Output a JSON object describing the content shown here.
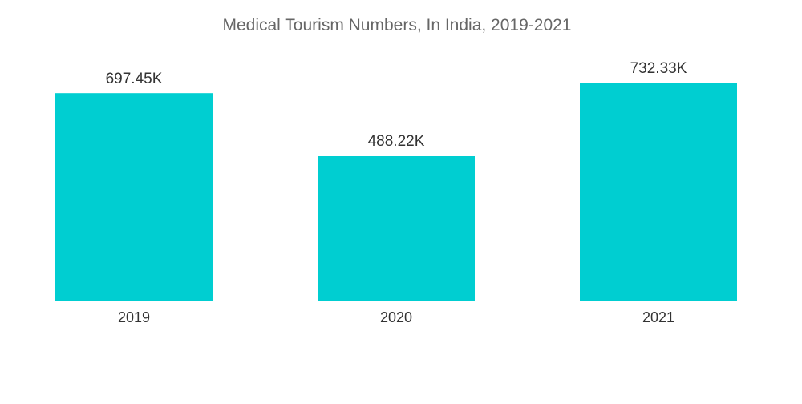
{
  "chart_data": {
    "type": "bar",
    "title": "Medical Tourism Numbers, In India, 2019-2021",
    "categories": [
      "2019",
      "2020",
      "2021"
    ],
    "values": [
      697.45,
      488.22,
      732.33
    ],
    "value_labels": [
      "697.45K",
      "488.22K",
      "732.33K"
    ],
    "unit": "K",
    "xlabel": "",
    "ylabel": "",
    "ylim": [
      0,
      800
    ],
    "grid": false,
    "legend": "none",
    "bar_color": "#00CED1"
  }
}
